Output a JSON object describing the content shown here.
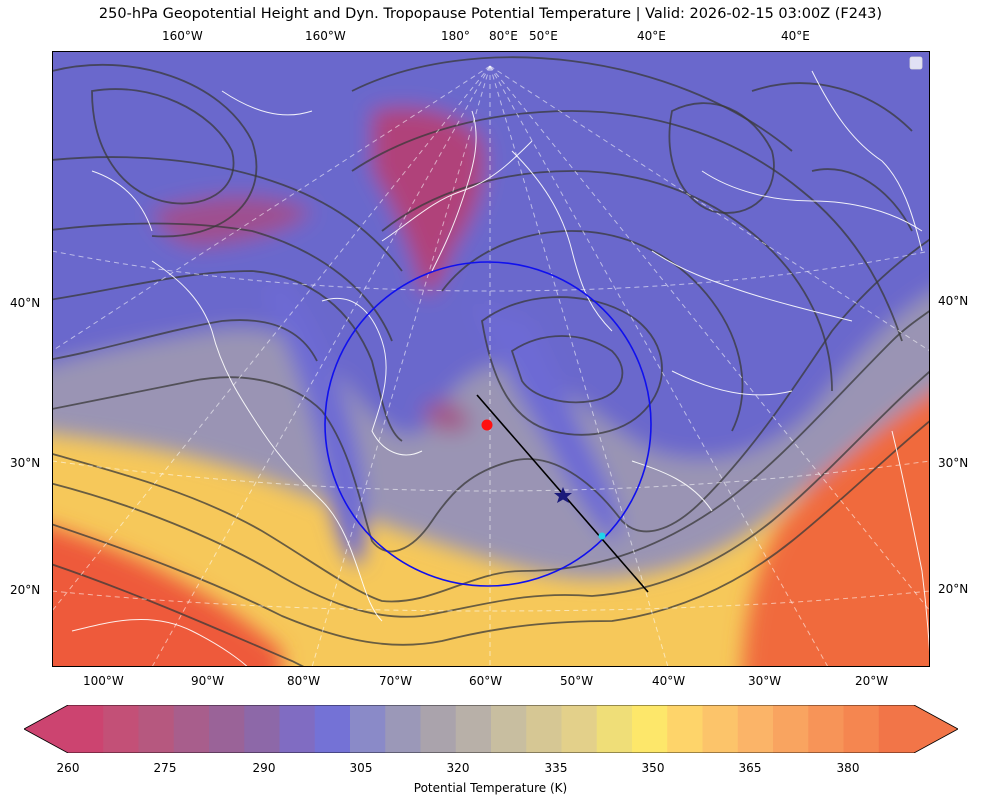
{
  "title": "250-hPa Geopotential Height and Dyn. Tropopause Potential Temperature   |  Valid: 2026-02-15 03:00Z (F243)",
  "top_labels": [
    "160°W",
    "160°W",
    "180°",
    "80°E",
    "50°E",
    "40°E",
    "40°E"
  ],
  "left_labels": [
    "40°N",
    "30°N",
    "20°N"
  ],
  "right_labels": [
    "40°N",
    "30°N",
    "20°N"
  ],
  "bottom_labels": [
    "100°W",
    "90°W",
    "80°W",
    "70°W",
    "60°W",
    "50°W",
    "40°W",
    "30°W",
    "20°W"
  ],
  "colorbar": {
    "ticks": [
      "260",
      "275",
      "290",
      "305",
      "320",
      "335",
      "350",
      "365",
      "380"
    ],
    "label": "Potential Temperature (K)",
    "colors": [
      "#cc4470",
      "#c35077",
      "#b6587f",
      "#a85e8c",
      "#9a6398",
      "#8d68a8",
      "#806cc2",
      "#7472d6",
      "#8a8ac8",
      "#9b98b8",
      "#aaa3ac",
      "#b8b0a8",
      "#c8bea0",
      "#d6c794",
      "#e3d08a",
      "#efde78",
      "#fde76a",
      "#fed46a",
      "#fcc46a",
      "#fbb468",
      "#f9a460",
      "#f79458",
      "#f58650",
      "#f27548"
    ]
  },
  "markers": {
    "red_dot": "red",
    "star": "dark blue",
    "cyan_dot": "cyan",
    "circle": "blue"
  }
}
